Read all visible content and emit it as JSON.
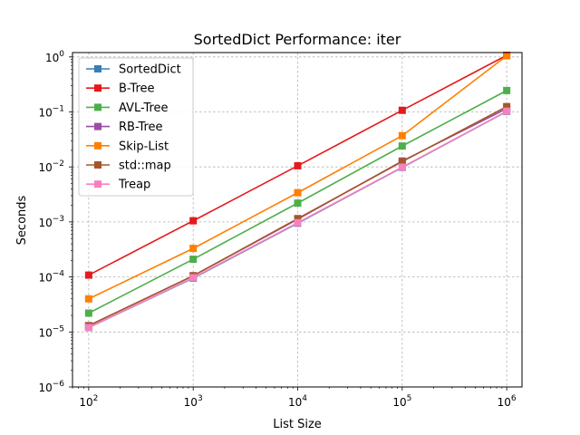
{
  "chart_data": {
    "type": "line",
    "title": "SortedDict Performance: iter",
    "xlabel": "List Size",
    "ylabel": "Seconds",
    "x": [
      100,
      1000,
      10000,
      100000,
      1000000
    ],
    "x_scale": "log",
    "y_scale": "log",
    "xlim": [
      70,
      1400000
    ],
    "ylim": [
      1e-06,
      1.2
    ],
    "x_ticks": [
      {
        "value": 100,
        "base": "10",
        "exp": "2"
      },
      {
        "value": 1000,
        "base": "10",
        "exp": "3"
      },
      {
        "value": 10000,
        "base": "10",
        "exp": "4"
      },
      {
        "value": 100000,
        "base": "10",
        "exp": "5"
      },
      {
        "value": 1000000,
        "base": "10",
        "exp": "6"
      }
    ],
    "y_ticks": [
      {
        "value": 1e-06,
        "base": "10",
        "exp": "−6"
      },
      {
        "value": 1e-05,
        "base": "10",
        "exp": "−5"
      },
      {
        "value": 0.0001,
        "base": "10",
        "exp": "−4"
      },
      {
        "value": 0.001,
        "base": "10",
        "exp": "−3"
      },
      {
        "value": 0.01,
        "base": "10",
        "exp": "−2"
      },
      {
        "value": 0.1,
        "base": "10",
        "exp": "−1"
      },
      {
        "value": 1,
        "base": "10",
        "exp": "0"
      }
    ],
    "grid": true,
    "legend_position": "top-left",
    "series": [
      {
        "name": "SortedDict",
        "color": "#377eb8",
        "values": [
          1.2e-05,
          9.5e-05,
          0.00095,
          0.0098,
          0.102
        ]
      },
      {
        "name": "B-Tree",
        "color": "#e41a1c",
        "values": [
          0.000108,
          0.00105,
          0.0105,
          0.107,
          1.07
        ]
      },
      {
        "name": "AVL-Tree",
        "color": "#4daf4a",
        "values": [
          2.2e-05,
          0.00021,
          0.0022,
          0.024,
          0.245
        ]
      },
      {
        "name": "RB-Tree",
        "color": "#984ea3",
        "values": [
          1.3e-05,
          0.000105,
          0.00112,
          0.0128,
          0.115
        ]
      },
      {
        "name": "Skip-List",
        "color": "#ff7f00",
        "values": [
          4e-05,
          0.00033,
          0.0034,
          0.037,
          1.05
        ]
      },
      {
        "name": "std::map",
        "color": "#a65628",
        "values": [
          1.3e-05,
          0.000105,
          0.00115,
          0.0125,
          0.125
        ]
      },
      {
        "name": "Treap",
        "color": "#f781bf",
        "values": [
          1.2e-05,
          9.7e-05,
          0.00097,
          0.0099,
          0.103
        ]
      }
    ]
  }
}
